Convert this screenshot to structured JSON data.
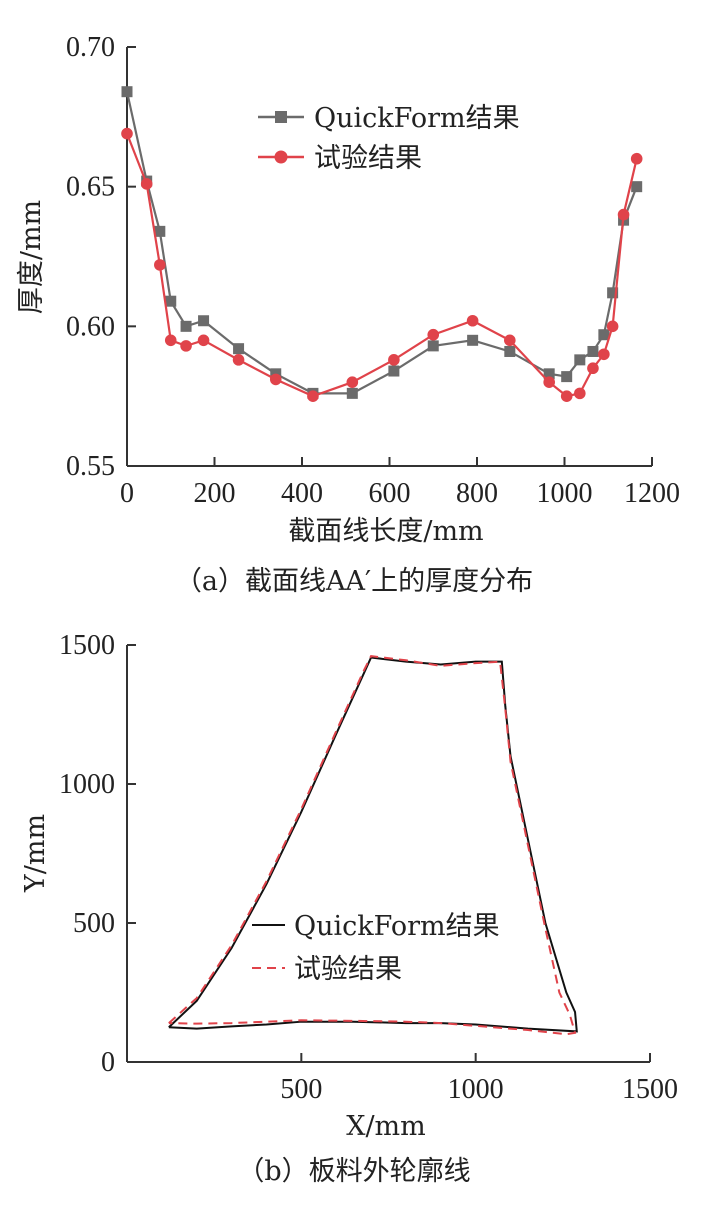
{
  "chart_data": [
    {
      "type": "line",
      "xlabel": "截面线长度/mm",
      "ylabel": "厚度/mm",
      "caption": "（a）截面线AA′上的厚度分布",
      "xlim": [
        0,
        1200
      ],
      "ylim": [
        0.55,
        0.7
      ],
      "xticks": [
        "0",
        "200",
        "400",
        "600",
        "800",
        "1000",
        "1200"
      ],
      "yticks": [
        "0.55",
        "0.60",
        "0.65",
        "0.70"
      ],
      "grid": false,
      "legend_position": "top-center",
      "series": [
        {
          "name": "QuickForm结果",
          "color": "#6b6b6b",
          "marker": "square",
          "x": [
            0,
            45,
            75,
            100,
            135,
            175,
            255,
            340,
            425,
            515,
            610,
            700,
            790,
            875,
            965,
            1005,
            1035,
            1065,
            1090,
            1110,
            1135,
            1165
          ],
          "y": [
            0.684,
            0.652,
            0.634,
            0.609,
            0.6,
            0.602,
            0.592,
            0.583,
            0.576,
            0.576,
            0.584,
            0.593,
            0.595,
            0.591,
            0.583,
            0.582,
            0.588,
            0.591,
            0.597,
            0.612,
            0.638,
            0.65
          ]
        },
        {
          "name": "试验结果",
          "color": "#e0434a",
          "marker": "circle",
          "x": [
            0,
            45,
            75,
            100,
            135,
            175,
            255,
            340,
            425,
            515,
            610,
            700,
            790,
            875,
            965,
            1005,
            1035,
            1065,
            1090,
            1110,
            1135,
            1165
          ],
          "y": [
            0.669,
            0.651,
            0.622,
            0.595,
            0.593,
            0.595,
            0.588,
            0.581,
            0.575,
            0.58,
            0.588,
            0.597,
            0.602,
            0.595,
            0.58,
            0.575,
            0.576,
            0.585,
            0.59,
            0.6,
            0.64,
            0.66
          ]
        }
      ]
    },
    {
      "type": "line",
      "xlabel": "X/mm",
      "ylabel": "Y/mm",
      "caption": "（b）板料外轮廓线",
      "xlim": [
        0,
        1500
      ],
      "ylim": [
        0,
        1500
      ],
      "xticks": [
        "500",
        "1000",
        "1500"
      ],
      "yticks": [
        "0",
        "500",
        "1000",
        "1500"
      ],
      "grid": false,
      "legend_position": "center-left",
      "series": [
        {
          "name": "QuickForm结果",
          "color": "#111111",
          "style": "solid",
          "x": [
            120,
            200,
            300,
            400,
            500,
            600,
            680,
            700,
            800,
            900,
            1000,
            1075,
            1085,
            1100,
            1150,
            1200,
            1260,
            1285,
            1290,
            1150,
            1000,
            900,
            800,
            650,
            500,
            400,
            300,
            200,
            120
          ],
          "y": [
            125,
            220,
            410,
            640,
            900,
            1180,
            1400,
            1455,
            1440,
            1430,
            1440,
            1440,
            1280,
            1100,
            800,
            500,
            250,
            180,
            110,
            120,
            135,
            140,
            140,
            145,
            145,
            135,
            128,
            120,
            125
          ]
        },
        {
          "name": "试验结果",
          "color": "#e0434a",
          "style": "dashed",
          "x": [
            120,
            200,
            300,
            400,
            500,
            600,
            680,
            700,
            800,
            900,
            1000,
            1070,
            1085,
            1100,
            1150,
            1200,
            1240,
            1270,
            1285,
            1260,
            1150,
            1000,
            900,
            800,
            650,
            500,
            400,
            300,
            200,
            120
          ],
          "y": [
            140,
            230,
            420,
            650,
            910,
            1190,
            1410,
            1460,
            1445,
            1425,
            1435,
            1440,
            1270,
            1080,
            780,
            480,
            250,
            170,
            105,
            100,
            115,
            130,
            140,
            145,
            148,
            150,
            145,
            140,
            138,
            140
          ]
        }
      ]
    }
  ]
}
